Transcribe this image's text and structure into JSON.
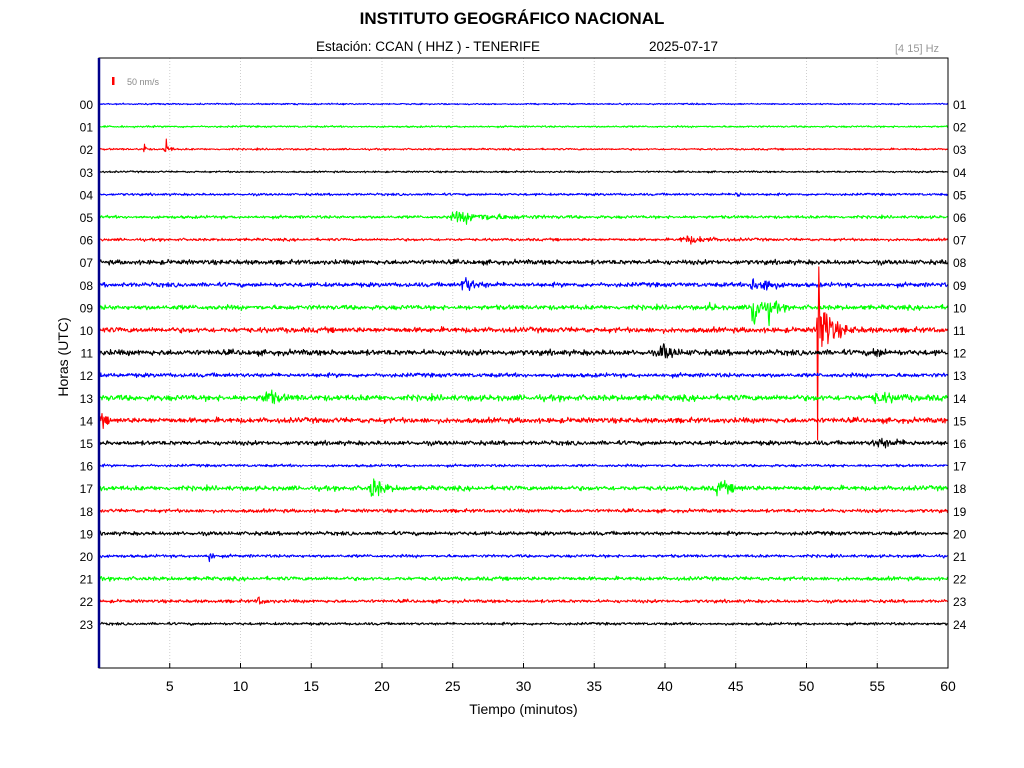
{
  "header": {
    "title": "INSTITUTO GEOGRÁFICO NACIONAL",
    "station_label": "Estación:  CCAN ( HHZ ) - TENERIFE",
    "date": "2025-07-17",
    "filter_band": "[4 15] Hz"
  },
  "chart_data": {
    "type": "line",
    "title": "INSTITUTO GEOGRÁFICO NACIONAL",
    "xlabel": "Tiempo (minutos)",
    "ylabel": "Horas (UTC)",
    "xlim": [
      0,
      60
    ],
    "x_ticks": [
      5,
      10,
      15,
      20,
      25,
      30,
      35,
      40,
      45,
      50,
      55,
      60
    ],
    "scale_label": "50 nm/s",
    "scale_color": "#ff0000",
    "grid": true,
    "grid_style": "dotted",
    "trace_colors": [
      "#0000ff",
      "#00ff00",
      "#ff0000",
      "#000000"
    ],
    "traces": [
      {
        "left_label": "00",
        "right_label": "01",
        "color": "#0000ff",
        "noise": 0.5,
        "events": []
      },
      {
        "left_label": "01",
        "right_label": "02",
        "color": "#00ff00",
        "noise": 0.6,
        "events": []
      },
      {
        "left_label": "02",
        "right_label": "03",
        "color": "#ff0000",
        "noise": 0.6,
        "events": [
          {
            "t": 3.2,
            "amp": 5,
            "dur": 0.15
          },
          {
            "t": 4.7,
            "amp": 13,
            "dur": 0.25
          }
        ]
      },
      {
        "left_label": "03",
        "right_label": "04",
        "color": "#000000",
        "noise": 0.6,
        "events": []
      },
      {
        "left_label": "04",
        "right_label": "05",
        "color": "#0000ff",
        "noise": 0.8,
        "events": [
          {
            "t": 45.0,
            "amp": 3,
            "dur": 0.4
          }
        ]
      },
      {
        "left_label": "05",
        "right_label": "06",
        "color": "#00ff00",
        "noise": 1.0,
        "events": [
          {
            "t": 25.5,
            "amp": 3.5,
            "dur": 4.0
          }
        ]
      },
      {
        "left_label": "06",
        "right_label": "07",
        "color": "#ff0000",
        "noise": 0.9,
        "events": [
          {
            "t": 41.5,
            "amp": 2.5,
            "dur": 2.5
          }
        ]
      },
      {
        "left_label": "07",
        "right_label": "08",
        "color": "#000000",
        "noise": 1.6,
        "events": []
      },
      {
        "left_label": "08",
        "right_label": "09",
        "color": "#0000ff",
        "noise": 1.5,
        "events": [
          {
            "t": 25.8,
            "amp": 6,
            "dur": 1.0
          },
          {
            "t": 46.2,
            "amp": 10,
            "dur": 0.5
          },
          {
            "t": 47.0,
            "amp": 6,
            "dur": 0.8
          }
        ]
      },
      {
        "left_label": "09",
        "right_label": "10",
        "color": "#00ff00",
        "noise": 1.6,
        "events": [
          {
            "t": 43.2,
            "amp": 4,
            "dur": 0.3
          },
          {
            "t": 46.2,
            "amp": 40,
            "dur": 0.4
          },
          {
            "t": 47.3,
            "amp": 8,
            "dur": 0.8
          }
        ]
      },
      {
        "left_label": "10",
        "right_label": "11",
        "color": "#ff0000",
        "noise": 1.8,
        "events": [
          {
            "t": 50.8,
            "amp": 100,
            "dur": 0.25
          },
          {
            "t": 51.3,
            "amp": 14,
            "dur": 1.2
          }
        ]
      },
      {
        "left_label": "11",
        "right_label": "12",
        "color": "#000000",
        "noise": 1.9,
        "events": [
          {
            "t": 39.8,
            "amp": 6,
            "dur": 1.0
          },
          {
            "t": 54.8,
            "amp": 4,
            "dur": 0.6
          }
        ]
      },
      {
        "left_label": "12",
        "right_label": "13",
        "color": "#0000ff",
        "noise": 1.4,
        "events": []
      },
      {
        "left_label": "13",
        "right_label": "14",
        "color": "#00ff00",
        "noise": 2.0,
        "events": [
          {
            "t": 11.8,
            "amp": 6,
            "dur": 1.0
          },
          {
            "t": 55.0,
            "amp": 3,
            "dur": 2.0
          }
        ]
      },
      {
        "left_label": "14",
        "right_label": "15",
        "color": "#ff0000",
        "noise": 1.8,
        "events": [
          {
            "t": 0.2,
            "amp": 5,
            "dur": 0.4
          }
        ]
      },
      {
        "left_label": "15",
        "right_label": "16",
        "color": "#000000",
        "noise": 1.5,
        "events": [
          {
            "t": 55.0,
            "amp": 3,
            "dur": 2.0
          }
        ]
      },
      {
        "left_label": "16",
        "right_label": "17",
        "color": "#0000ff",
        "noise": 0.9,
        "events": []
      },
      {
        "left_label": "17",
        "right_label": "18",
        "color": "#00ff00",
        "noise": 1.6,
        "events": [
          {
            "t": 19.3,
            "amp": 8,
            "dur": 1.0
          },
          {
            "t": 43.8,
            "amp": 5,
            "dur": 1.2
          }
        ]
      },
      {
        "left_label": "18",
        "right_label": "19",
        "color": "#ff0000",
        "noise": 1.2,
        "events": []
      },
      {
        "left_label": "19",
        "right_label": "20",
        "color": "#000000",
        "noise": 1.3,
        "events": []
      },
      {
        "left_label": "20",
        "right_label": "21",
        "color": "#0000ff",
        "noise": 1.0,
        "events": [
          {
            "t": 7.8,
            "amp": 9,
            "dur": 0.2
          }
        ]
      },
      {
        "left_label": "21",
        "right_label": "22",
        "color": "#00ff00",
        "noise": 1.3,
        "events": []
      },
      {
        "left_label": "22",
        "right_label": "23",
        "color": "#ff0000",
        "noise": 1.1,
        "events": [
          {
            "t": 11.2,
            "amp": 3,
            "dur": 0.6
          }
        ]
      },
      {
        "left_label": "23",
        "right_label": "24",
        "color": "#000000",
        "noise": 0.9,
        "events": []
      }
    ]
  }
}
